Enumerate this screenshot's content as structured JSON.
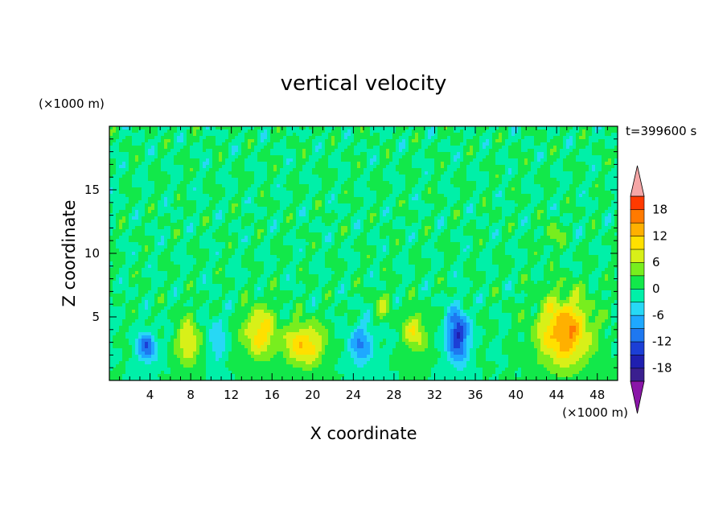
{
  "chart_data": {
    "type": "heatmap",
    "title": "vertical velocity",
    "xlabel": "X coordinate",
    "ylabel": "Z coordinate",
    "x_unit": "(×1000 m)",
    "y_unit": "(×1000 m)",
    "time_label": "t=399600 s",
    "xlim": [
      0,
      50
    ],
    "ylim": [
      0,
      20
    ],
    "x_ticks": [
      4,
      8,
      12,
      16,
      20,
      24,
      28,
      32,
      36,
      40,
      44,
      48
    ],
    "y_ticks": [
      5,
      10,
      15
    ],
    "colorbar": {
      "levels": [
        -21,
        -18,
        -15,
        -12,
        -9,
        -6,
        -3,
        0,
        3,
        6,
        9,
        12,
        15,
        18,
        21
      ],
      "tick_labels": [
        "18",
        "12",
        "6",
        "0",
        "-6",
        "-12",
        "-18"
      ],
      "tick_values": [
        18,
        12,
        6,
        0,
        -6,
        -12,
        -18
      ],
      "colors": [
        "#3a1f8f",
        "#1f1fb0",
        "#1c3fd6",
        "#1e78f0",
        "#1ea8ff",
        "#27d8f5",
        "#00f0a8",
        "#12e84a",
        "#78ee1e",
        "#d8f018",
        "#ffe000",
        "#ffb000",
        "#ff7a00",
        "#ff3a00"
      ],
      "below_color": "#8a16a8",
      "above_color": "#f5a6a6"
    },
    "features": [
      {
        "x": 3.7,
        "z": 2.6,
        "amp": -12,
        "wx": 0.9,
        "wz": 1.2
      },
      {
        "x": 7.8,
        "z": 3.0,
        "amp": 9,
        "wx": 1.2,
        "wz": 1.9
      },
      {
        "x": 10.5,
        "z": 3.2,
        "amp": -5,
        "wx": 1.0,
        "wz": 2.0
      },
      {
        "x": 14.8,
        "z": 3.8,
        "amp": 11,
        "wx": 1.6,
        "wz": 2.0
      },
      {
        "x": 19.2,
        "z": 2.8,
        "amp": 12,
        "wx": 1.9,
        "wz": 1.7
      },
      {
        "x": 24.8,
        "z": 2.8,
        "amp": -9,
        "wx": 1.3,
        "wz": 1.6
      },
      {
        "x": 27.0,
        "z": 5.8,
        "amp": 5,
        "wx": 0.9,
        "wz": 1.2
      },
      {
        "x": 30.1,
        "z": 3.8,
        "amp": 9,
        "wx": 1.1,
        "wz": 1.6
      },
      {
        "x": 34.3,
        "z": 3.5,
        "amp": -16,
        "wx": 1.0,
        "wz": 2.1
      },
      {
        "x": 44.8,
        "z": 3.8,
        "amp": 15,
        "wx": 2.6,
        "wz": 2.8
      },
      {
        "x": 43.6,
        "z": 11.4,
        "amp": 5,
        "wx": 0.8,
        "wz": 1.1
      }
    ]
  }
}
